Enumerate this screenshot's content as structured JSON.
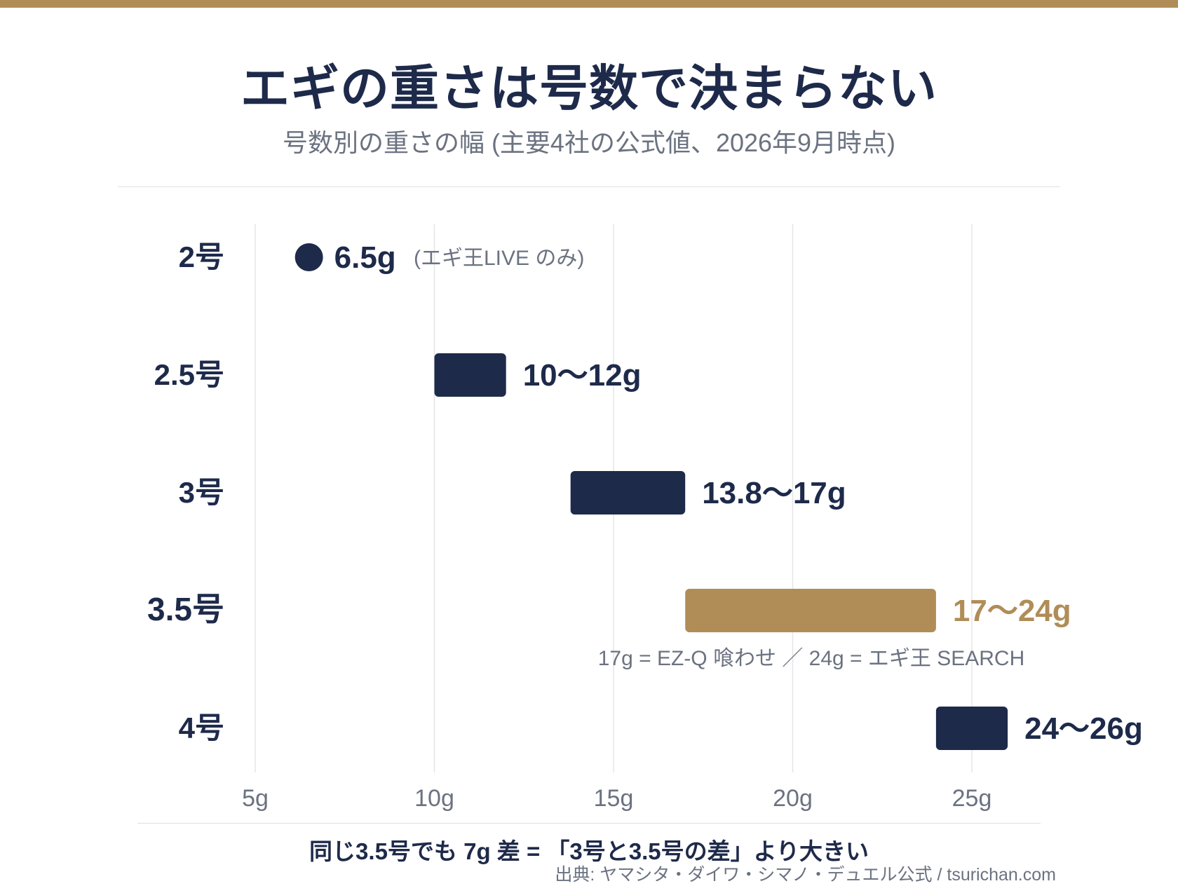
{
  "header": {
    "title": "エギの重さは号数で決まらない",
    "subtitle": "号数別の重さの幅 (主要4社の公式値、2026年9月時点)"
  },
  "colors": {
    "navy": "#1e2a4a",
    "gold": "#b08d57",
    "gray": "#6b7280",
    "grid": "#e5e5e5"
  },
  "chart_data": {
    "type": "range-bar",
    "xlim": [
      5,
      27
    ],
    "x_ticks": [
      5,
      10,
      15,
      20,
      25
    ],
    "x_tick_labels": [
      "5g",
      "10g",
      "15g",
      "20g",
      "25g"
    ],
    "grid": true,
    "rows": [
      {
        "category": "2号",
        "min": 6.5,
        "max": 6.5,
        "label": "6.5g",
        "note": "(エギ王LIVE のみ)",
        "highlight": false,
        "marker": "dot"
      },
      {
        "category": "2.5号",
        "min": 10,
        "max": 12,
        "label": "10〜12g",
        "highlight": false,
        "marker": "bar"
      },
      {
        "category": "3号",
        "min": 13.8,
        "max": 17,
        "label": "13.8〜17g",
        "highlight": false,
        "marker": "bar"
      },
      {
        "category": "3.5号",
        "min": 17,
        "max": 24,
        "label": "17〜24g",
        "highlight": true,
        "marker": "bar",
        "annotation": "17g = EZ-Q 喰わせ ／ 24g = エギ王 SEARCH"
      },
      {
        "category": "4号",
        "min": 24,
        "max": 26,
        "label": "24〜26g",
        "highlight": false,
        "marker": "bar"
      }
    ]
  },
  "footer": {
    "note": "同じ3.5号でも 7g 差 = 「3号と3.5号の差」より大きい",
    "source": "出典: ヤマシタ・ダイワ・シマノ・デュエル公式 / tsurichan.com"
  }
}
